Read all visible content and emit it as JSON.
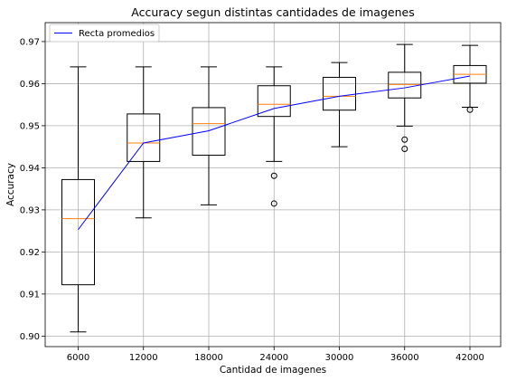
{
  "chart_data": {
    "type": "boxplot",
    "title": "Accuracy segun distintas cantidades de imagenes",
    "xlabel": "Cantidad de imagenes",
    "ylabel": "Accuracy",
    "ylim": [
      0.8975,
      0.9745
    ],
    "yticks": [
      "0.90",
      "0.91",
      "0.92",
      "0.93",
      "0.94",
      "0.95",
      "0.96",
      "0.97"
    ],
    "ytick_values": [
      0.9,
      0.91,
      0.92,
      0.93,
      0.94,
      0.95,
      0.96,
      0.97
    ],
    "grid": true,
    "legend_position": "top-left",
    "categories": [
      "6000",
      "12000",
      "18000",
      "24000",
      "30000",
      "36000",
      "42000"
    ],
    "boxes": [
      {
        "whisker_low": 0.901,
        "q1": 0.9122,
        "median": 0.9279,
        "q3": 0.9372,
        "whisker_high": 0.964,
        "outliers": []
      },
      {
        "whisker_low": 0.9281,
        "q1": 0.9415,
        "median": 0.9459,
        "q3": 0.9528,
        "whisker_high": 0.964,
        "outliers": []
      },
      {
        "whisker_low": 0.9312,
        "q1": 0.943,
        "median": 0.9505,
        "q3": 0.9543,
        "whisker_high": 0.964,
        "outliers": []
      },
      {
        "whisker_low": 0.9415,
        "q1": 0.9522,
        "median": 0.9551,
        "q3": 0.9595,
        "whisker_high": 0.964,
        "outliers": [
          0.9381,
          0.9315
        ]
      },
      {
        "whisker_low": 0.945,
        "q1": 0.9537,
        "median": 0.957,
        "q3": 0.9615,
        "whisker_high": 0.965,
        "outliers": []
      },
      {
        "whisker_low": 0.9499,
        "q1": 0.9566,
        "median": 0.9598,
        "q3": 0.9627,
        "whisker_high": 0.9693,
        "outliers": [
          0.9467,
          0.9445
        ]
      },
      {
        "whisker_low": 0.9544,
        "q1": 0.9601,
        "median": 0.9622,
        "q3": 0.9643,
        "whisker_high": 0.9691,
        "outliers": [
          0.9538
        ]
      }
    ],
    "series": [
      {
        "name": "Recta promedios",
        "type": "line",
        "color": "#0000ff",
        "values": [
          0.9253,
          0.9459,
          0.9488,
          0.9541,
          0.957,
          0.959,
          0.9618
        ]
      }
    ],
    "colors": {
      "box": "#000000",
      "median": "#ff7f0e",
      "line": "#0000ff",
      "grid": "#b0b0b0"
    }
  }
}
